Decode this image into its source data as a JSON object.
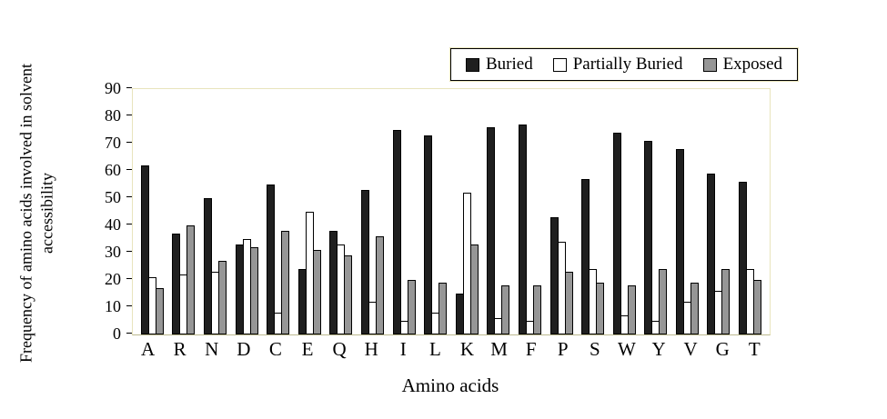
{
  "chart_data": {
    "type": "bar",
    "title": "",
    "xlabel": "Amino acids",
    "ylabel": "Frequency of amino acids involved in solvent accessibility",
    "ylim": [
      0,
      90
    ],
    "ytick_step": 10,
    "grid": false,
    "legend_position": "top-right",
    "categories": [
      "A",
      "R",
      "N",
      "D",
      "C",
      "E",
      "Q",
      "H",
      "I",
      "L",
      "K",
      "M",
      "F",
      "P",
      "S",
      "W",
      "Y",
      "V",
      "G",
      "T"
    ],
    "series": [
      {
        "name": "Buried",
        "color": "#1f1f1f",
        "values": [
          62,
          37,
          50,
          33,
          55,
          24,
          38,
          53,
          75,
          73,
          15,
          76,
          77,
          43,
          57,
          74,
          71,
          68,
          59,
          56
        ]
      },
      {
        "name": "Partially Buried",
        "color": "#ffffff",
        "values": [
          21,
          22,
          23,
          35,
          8,
          45,
          33,
          12,
          5,
          8,
          52,
          6,
          5,
          34,
          24,
          7,
          5,
          12,
          16,
          24
        ]
      },
      {
        "name": "Exposed",
        "color": "#969696",
        "values": [
          17,
          40,
          27,
          32,
          38,
          31,
          29,
          36,
          20,
          19,
          33,
          18,
          18,
          23,
          19,
          18,
          24,
          19,
          24,
          20
        ]
      }
    ]
  }
}
